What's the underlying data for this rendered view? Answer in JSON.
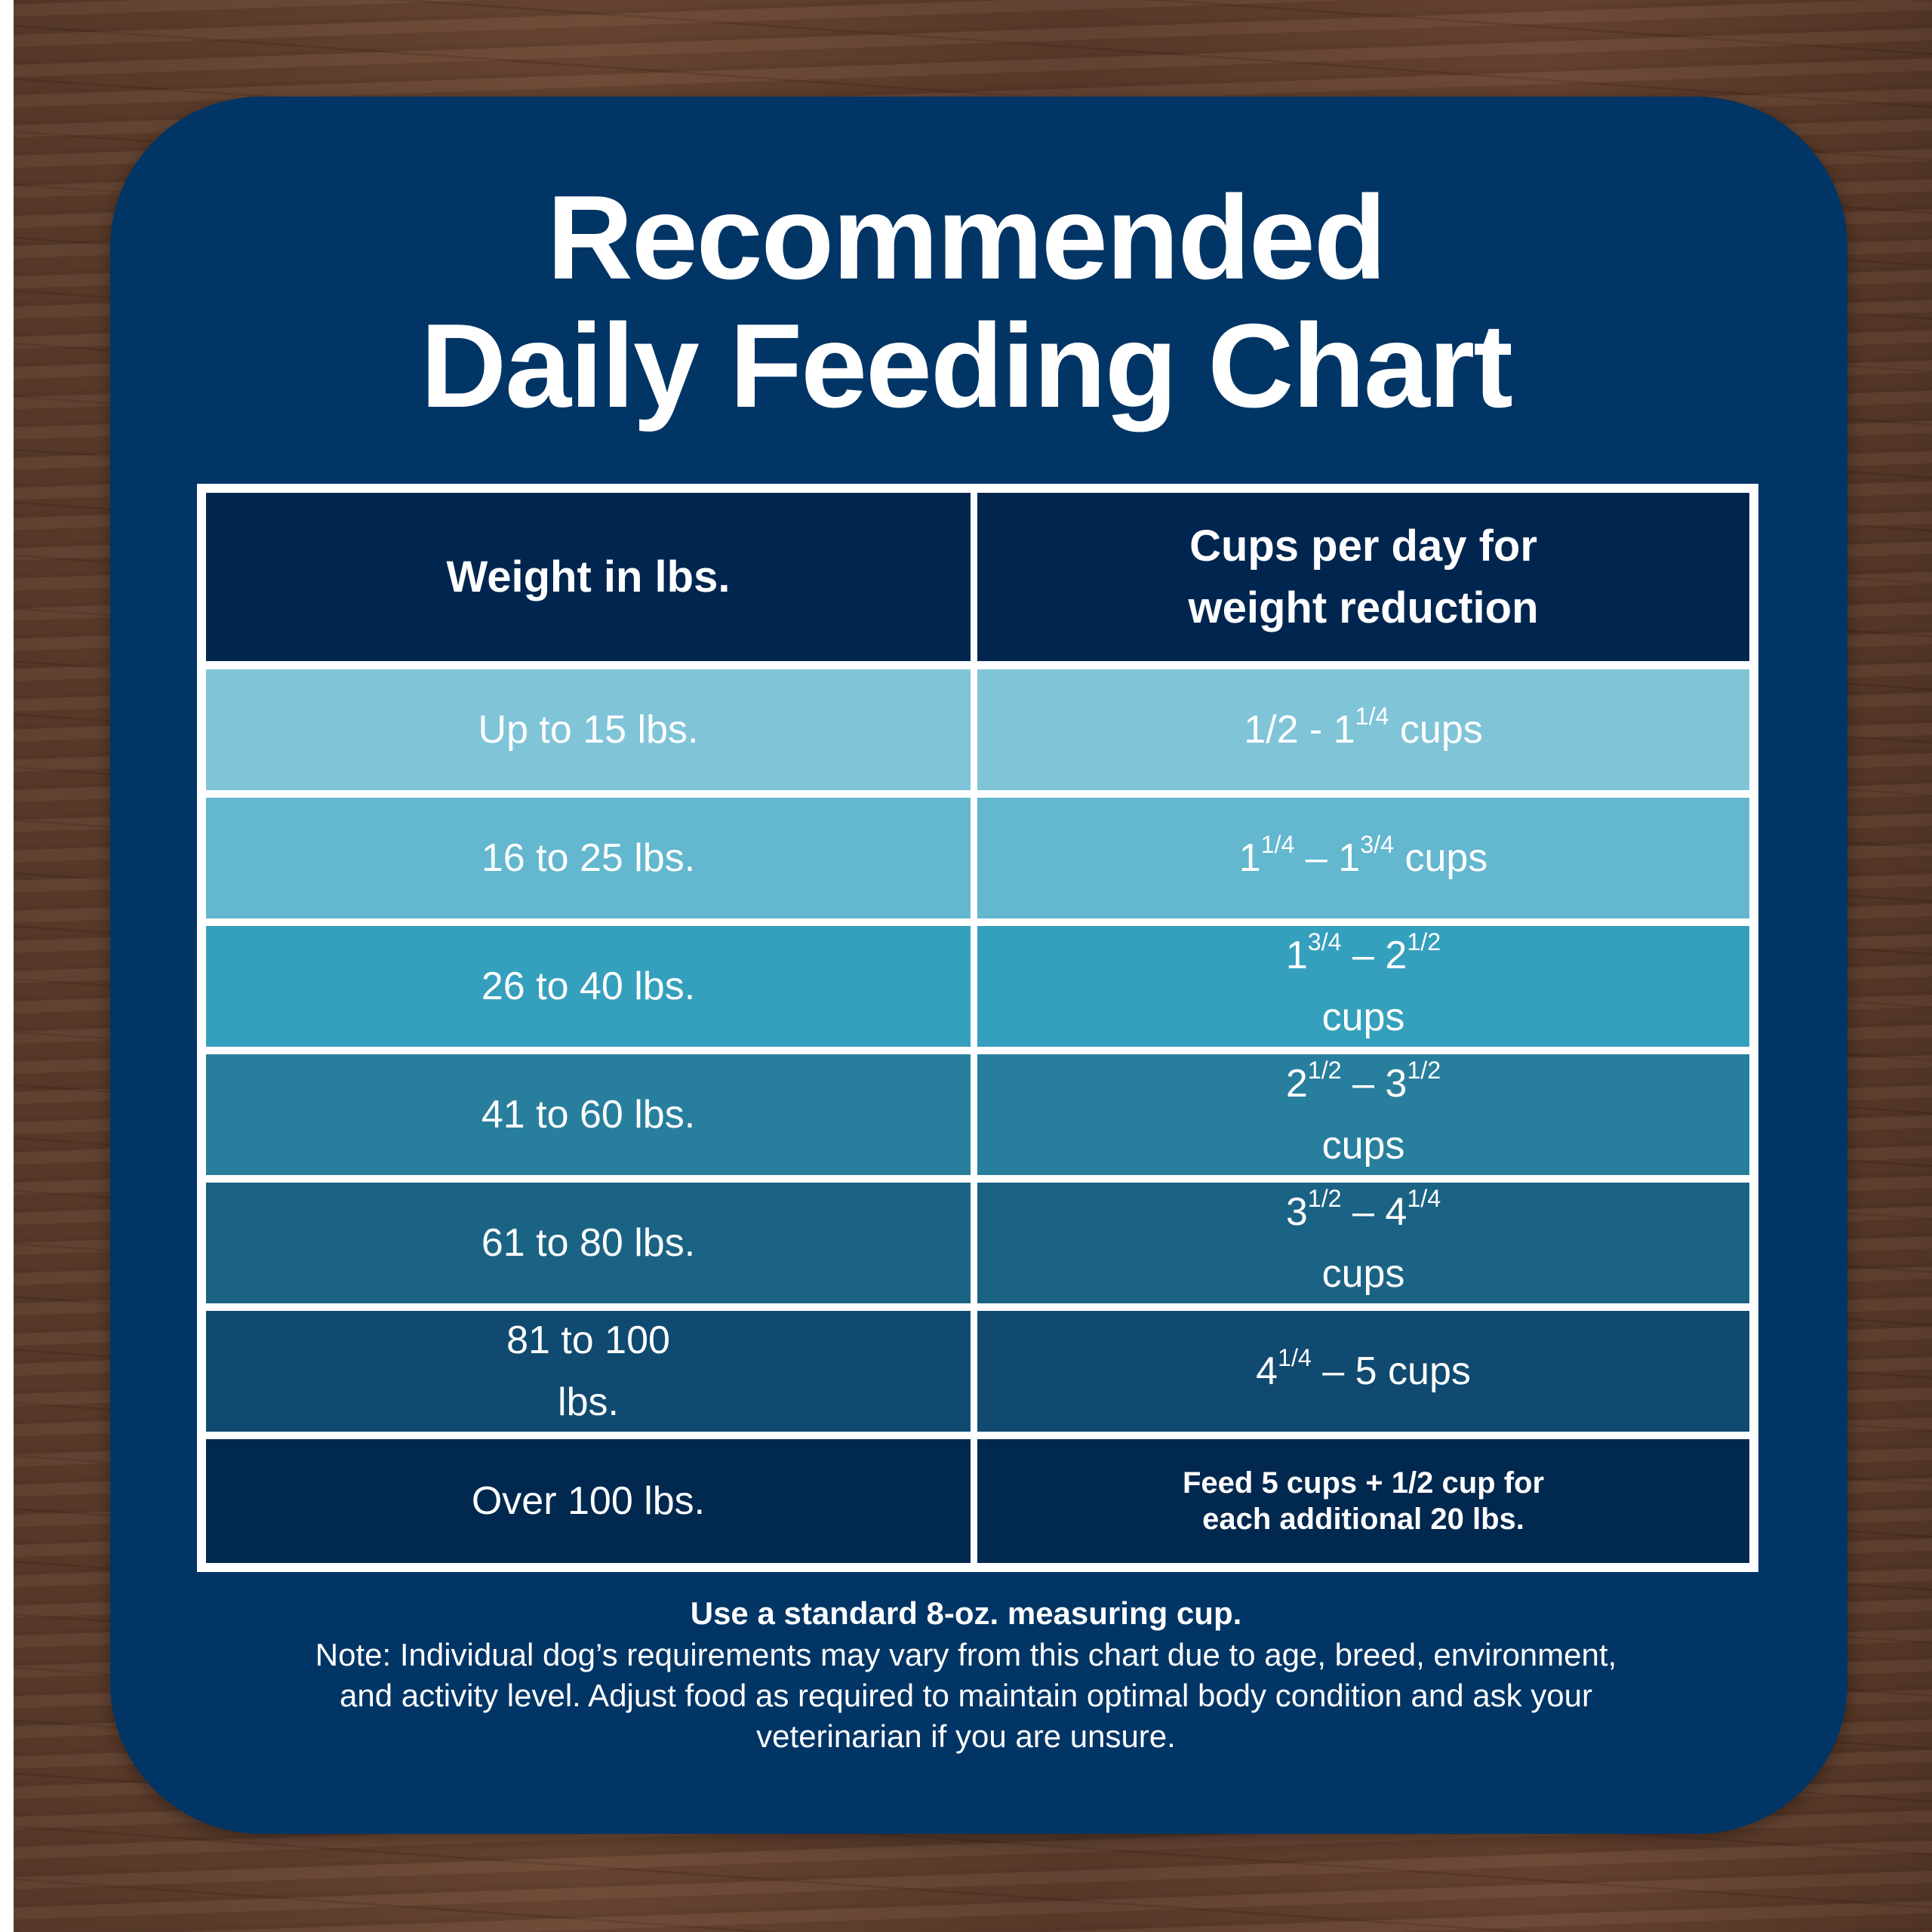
{
  "title": {
    "line1": "Recommended",
    "line2": "Daily Feeding Chart"
  },
  "table": {
    "headers": {
      "weight": "Weight in lbs.",
      "cups_line1": "Cups per day for",
      "cups_line2": "weight reduction"
    },
    "rows": [
      {
        "weight": "Up to 15 lbs.",
        "a": "1/2 - 1",
        "a_sup": "1/4",
        "b": "",
        "b_sup": "",
        "unit": "cups"
      },
      {
        "weight": "16 to 25 lbs.",
        "a": "1",
        "a_sup": "1/4",
        "b": "1",
        "b_sup": "3/4",
        "unit": "cups"
      },
      {
        "weight": "26 to 40 lbs.",
        "a": "1",
        "a_sup": "3/4",
        "b": "2",
        "b_sup": "1/2",
        "unit": "cups"
      },
      {
        "weight": "41 to 60 lbs.",
        "a": "2",
        "a_sup": "1/2",
        "b": "3",
        "b_sup": "1/2",
        "unit": "cups"
      },
      {
        "weight": "61 to 80 lbs.",
        "a": "3",
        "a_sup": "1/2",
        "b": "4",
        "b_sup": "1/4",
        "unit": "cups"
      },
      {
        "weight_line1": "81 to 100",
        "weight_line2": "lbs.",
        "a": "4",
        "a_sup": "1/4",
        "b": "5",
        "unit": "cups"
      },
      {
        "weight": "Over 100 lbs.",
        "line1": "Feed 5 cups + 1/2 cup for",
        "line2": "each additional 20 lbs."
      }
    ]
  },
  "notes": {
    "bold": "Use a standard 8-oz. measuring cup.",
    "line1": "Note: Individual dog’s requirements may vary from this chart due to age, breed, environment,",
    "line2": "and activity level. Adjust food as required to maintain optimal body condition and ask your",
    "line3": "veterinarian if you are unsure."
  },
  "colors": {
    "card": "#003565",
    "header": "#00264f",
    "rows": [
      "#80c4d8",
      "#63b7cf",
      "#35a0bd",
      "#287f9d",
      "#1b6385",
      "#104a70",
      "#01284f"
    ]
  }
}
